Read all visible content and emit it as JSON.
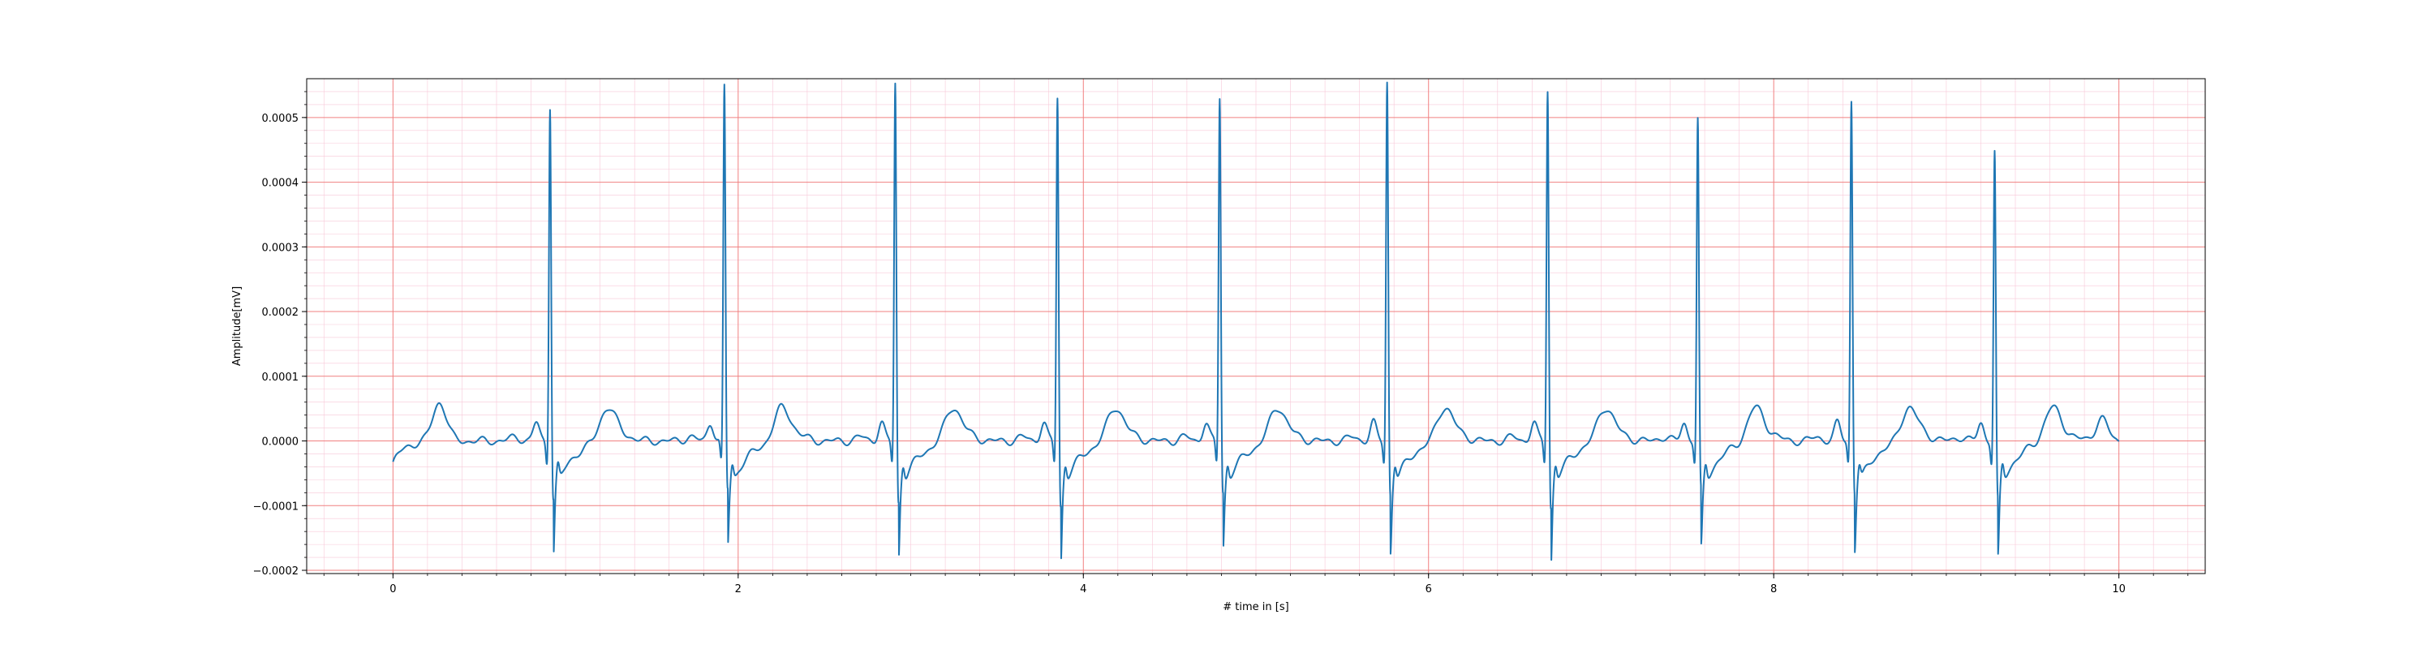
{
  "chart_data": {
    "type": "line",
    "title": "",
    "xlabel": "# time in [s]",
    "ylabel": "Amplitude[mV]",
    "xlim": [
      -0.5,
      10.5
    ],
    "ylim": [
      -0.000205,
      0.00056
    ],
    "x_ticks": [
      0,
      2,
      4,
      6,
      8,
      10
    ],
    "x_tick_labels": [
      "0",
      "2",
      "4",
      "6",
      "8",
      "10"
    ],
    "y_ticks": [
      -0.0002,
      -0.0001,
      0.0,
      0.0001,
      0.0002,
      0.0003,
      0.0004,
      0.0005
    ],
    "y_tick_labels": [
      "−0.0002",
      "−0.0001",
      "0.0000",
      "0.0001",
      "0.0002",
      "0.0003",
      "0.0004",
      "0.0005"
    ],
    "grid": "major red, minor pink",
    "colors": {
      "line": "#1f77b4",
      "major_grid": "#f08080",
      "minor_grid": "#f8c8d8"
    },
    "series": [
      {
        "beats": [
          {
            "r_time": 0.91,
            "r_peak": 0.000485,
            "s_min": -0.000155
          },
          {
            "r_time": 1.92,
            "r_peak": 0.000513,
            "s_min": -0.00014
          },
          {
            "r_time": 2.91,
            "r_peak": 0.00052,
            "s_min": -0.000162
          },
          {
            "r_time": 3.85,
            "r_peak": 0.000498,
            "s_min": -0.000168
          },
          {
            "r_time": 4.79,
            "r_peak": 0.000497,
            "s_min": -0.000145
          },
          {
            "r_time": 5.76,
            "r_peak": 0.000522,
            "s_min": -0.00015
          },
          {
            "r_time": 6.69,
            "r_peak": 0.00051,
            "s_min": -0.00017
          },
          {
            "r_time": 7.56,
            "r_peak": 0.000462,
            "s_min": -0.000142
          },
          {
            "r_time": 8.45,
            "r_peak": 0.000492,
            "s_min": -0.000145
          },
          {
            "r_time": 9.28,
            "r_peak": 0.000413,
            "s_min": -0.000158
          }
        ],
        "x_start": 0.0,
        "x_end": 10.0,
        "start_value": -3.5e-05
      }
    ]
  }
}
